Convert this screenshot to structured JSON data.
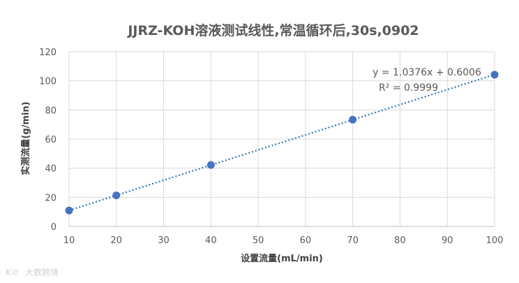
{
  "chart_data": {
    "type": "scatter",
    "title": "JJRZ-KOH溶液测试线性,常温循环后,30s,0902",
    "xlabel": "设置流量(mL/min)",
    "ylabel": "实测流量(g/min)",
    "xlim": [
      10,
      100
    ],
    "ylim": [
      0,
      120
    ],
    "xticks": [
      10,
      20,
      30,
      40,
      50,
      60,
      70,
      80,
      90,
      100
    ],
    "yticks": [
      0,
      20,
      40,
      60,
      80,
      100,
      120
    ],
    "grid": true,
    "series": [
      {
        "x": [
          10,
          20,
          40,
          70,
          100
        ],
        "y": [
          10.9,
          21.3,
          42.2,
          73.3,
          104.2
        ],
        "color": "#4472c4"
      }
    ],
    "trendline": {
      "type": "linear",
      "slope": 1.0376,
      "intercept": 0.6006,
      "style": "dotted",
      "color": "#2e75b6",
      "equation": "y = 1.0376x + 0.6006",
      "r2": "R² = 0.9999"
    }
  },
  "watermark": "大数跨境"
}
